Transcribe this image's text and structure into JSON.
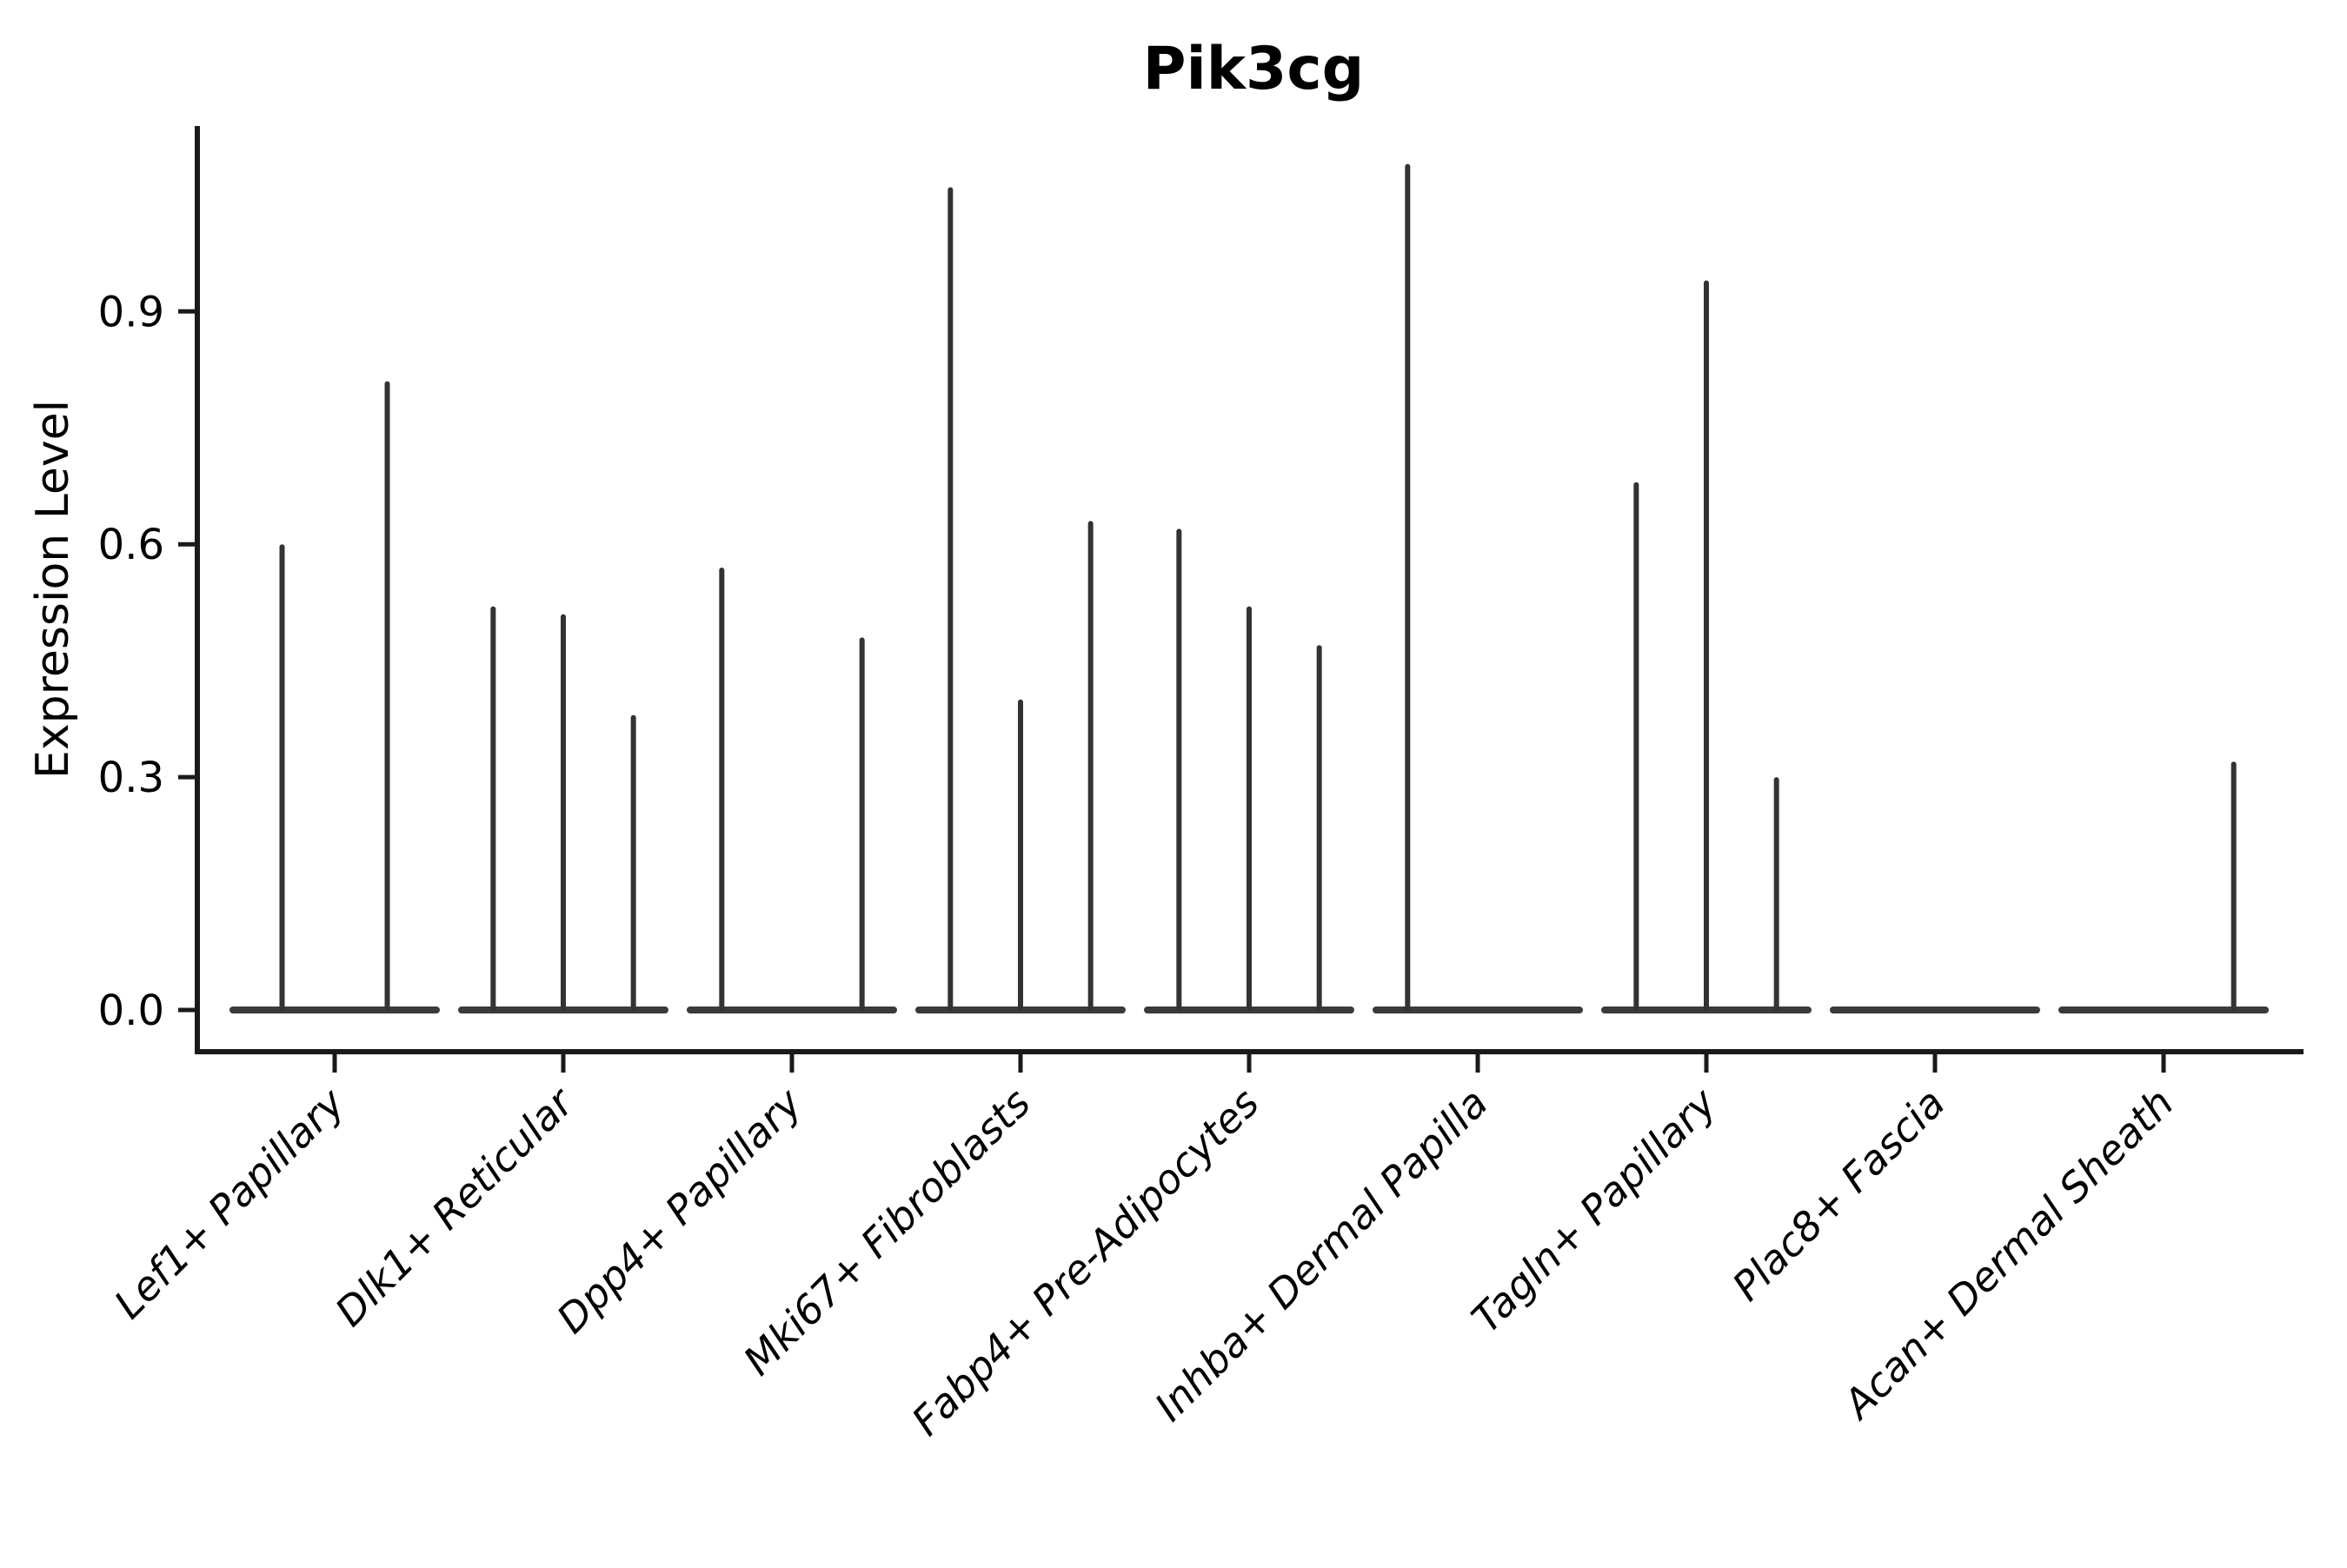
{
  "style": {
    "background": "#ffffff",
    "spine_color": "#1a1a1a",
    "tick_color": "#1a1a1a",
    "text_color": "#000000",
    "violin_stroke": "#333333",
    "baseline_stroke": "#3a3a3a"
  },
  "chart_data": {
    "type": "violin",
    "title": "Pik3cg",
    "xlabel": "",
    "ylabel": "Expression Level",
    "ylim": [
      0,
      1.14
    ],
    "grid": false,
    "legend": "none",
    "yticks": [
      {
        "value": 0.0,
        "label": "0.0"
      },
      {
        "value": 0.3,
        "label": "0.3"
      },
      {
        "value": 0.6,
        "label": "0.6"
      },
      {
        "value": 0.9,
        "label": "0.9"
      }
    ],
    "categories": [
      "Lef1+ Papillary",
      "Dlk1+ Reticular",
      "Dpp4+ Papillary",
      "Mki67+ Fibroblasts",
      "Fabp4+ Pre-Adipocytes",
      "Inhba+ Dermal Papilla",
      "Tagln+ Papillary",
      "Plac8+ Fascia",
      "Acan+ Dermal Sheath"
    ],
    "groups": [
      {
        "label": "Lef1+ Papillary",
        "n_violins": 2,
        "expressing_violins": [
          {
            "slot": 0,
            "peak": 0.6
          },
          {
            "slot": 1,
            "peak": 0.81
          }
        ]
      },
      {
        "label": "Dlk1+ Reticular",
        "n_violins": 3,
        "expressing_violins": [
          {
            "slot": 0,
            "peak": 0.52
          },
          {
            "slot": 1,
            "peak": 0.51
          },
          {
            "slot": 2,
            "peak": 0.38
          }
        ]
      },
      {
        "label": "Dpp4+ Papillary",
        "n_violins": 3,
        "expressing_violins": [
          {
            "slot": 0,
            "peak": 0.57
          },
          {
            "slot": 2,
            "peak": 0.48
          }
        ]
      },
      {
        "label": "Mki67+ Fibroblasts",
        "n_violins": 3,
        "expressing_violins": [
          {
            "slot": 0,
            "peak": 1.06
          },
          {
            "slot": 1,
            "peak": 0.4
          },
          {
            "slot": 2,
            "peak": 0.63
          }
        ]
      },
      {
        "label": "Fabp4+ Pre-Adipocytes",
        "n_violins": 3,
        "expressing_violins": [
          {
            "slot": 0,
            "peak": 0.62
          },
          {
            "slot": 1,
            "peak": 0.52
          },
          {
            "slot": 2,
            "peak": 0.47
          }
        ]
      },
      {
        "label": "Inhba+ Dermal Papilla",
        "n_violins": 3,
        "expressing_violins": [
          {
            "slot": 0,
            "peak": 1.09
          }
        ]
      },
      {
        "label": "Tagln+ Papillary",
        "n_violins": 3,
        "expressing_violins": [
          {
            "slot": 0,
            "peak": 0.68
          },
          {
            "slot": 1,
            "peak": 0.94
          },
          {
            "slot": 2,
            "peak": 0.3
          }
        ]
      },
      {
        "label": "Plac8+ Fascia",
        "n_violins": 3,
        "expressing_violins": []
      },
      {
        "label": "Acan+ Dermal Sheath",
        "n_violins": 3,
        "expressing_violins": [
          {
            "slot": 2,
            "peak": 0.32
          }
        ]
      }
    ]
  }
}
